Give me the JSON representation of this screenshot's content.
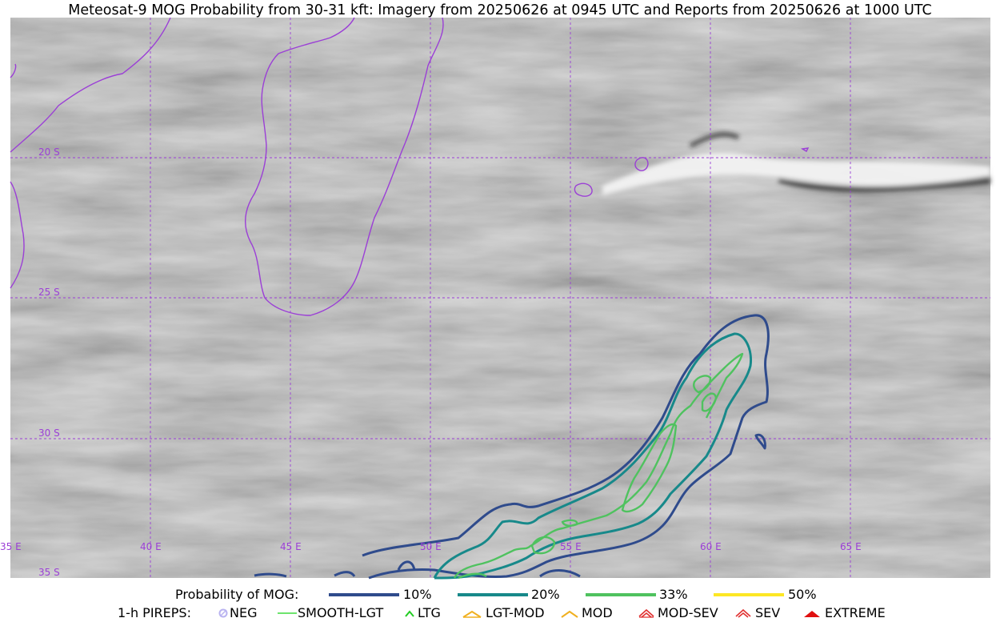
{
  "title": "Meteosat-9 MOG Probability from 30-31 kft: Imagery from 20250626 at 0945 UTC and Reports from 20250626 at 1000 UTC",
  "map": {
    "lat_labels": [
      "20 S",
      "25 S",
      "30 S",
      "35 S"
    ],
    "lon_labels": [
      "35 E",
      "40 E",
      "45 E",
      "50 E",
      "55 E",
      "60 E",
      "65 E"
    ],
    "gridline_color": "#9b3fd6",
    "coastline_color": "#9b3fd6"
  },
  "legend": {
    "probability_title": "Probability of MOG:",
    "probability_levels": [
      {
        "label": "10%",
        "color": "#2f4b8c"
      },
      {
        "label": "20%",
        "color": "#17898a"
      },
      {
        "label": "33%",
        "color": "#4fc25f"
      },
      {
        "label": "50%",
        "color": "#fde725"
      }
    ],
    "pireps_title": "1-h PIREPS:",
    "pireps": [
      {
        "label": "NEG",
        "icon": "neg-circle-icon",
        "color": "#b9b3f0"
      },
      {
        "label": "SMOOTH-LGT",
        "icon": "smooth-lgt-line-icon",
        "color": "#3ddc3d"
      },
      {
        "label": "LTG",
        "icon": "ltg-chevron-icon",
        "color": "#22cc22"
      },
      {
        "label": "LGT-MOD",
        "icon": "lgt-mod-hat-icon",
        "color": "#f0b020"
      },
      {
        "label": "MOD",
        "icon": "mod-hat-icon",
        "color": "#f0b020"
      },
      {
        "label": "MOD-SEV",
        "icon": "mod-sev-hat-icon",
        "color": "#e03030"
      },
      {
        "label": "SEV",
        "icon": "sev-hat-icon",
        "color": "#e03030"
      },
      {
        "label": "EXTREME",
        "icon": "extreme-hat-icon",
        "color": "#e01010"
      }
    ]
  }
}
